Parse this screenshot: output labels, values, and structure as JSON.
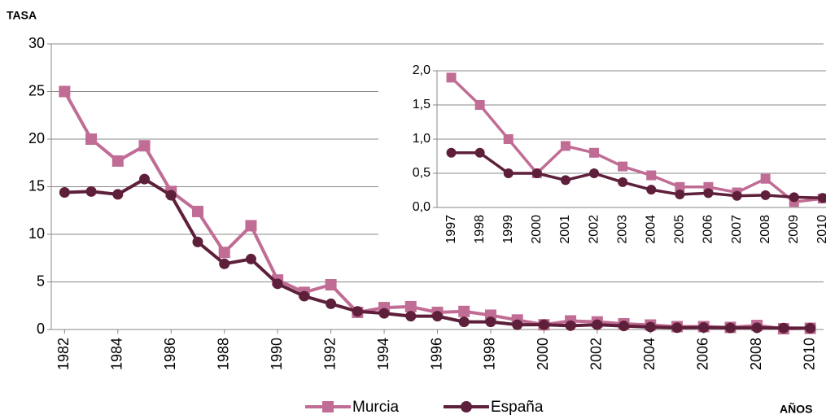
{
  "chart_data": [
    {
      "type": "line",
      "y_label": "TASA",
      "x_label": "AÑOS",
      "x": [
        1982,
        1983,
        1984,
        1985,
        1986,
        1987,
        1988,
        1989,
        1990,
        1991,
        1992,
        1993,
        1994,
        1995,
        1996,
        1997,
        1998,
        1999,
        2000,
        2001,
        2002,
        2003,
        2004,
        2005,
        2006,
        2007,
        2008,
        2009,
        2010
      ],
      "xlim": [
        1981.5,
        2010.5
      ],
      "xticks": [
        1982,
        1984,
        1986,
        1988,
        1990,
        1992,
        1994,
        1996,
        1998,
        2000,
        2002,
        2004,
        2006,
        2008,
        2010
      ],
      "ylim": [
        0,
        30
      ],
      "yticks": [
        0,
        5,
        10,
        15,
        20,
        25,
        30
      ],
      "grid": true,
      "series": [
        {
          "name": "Murcia",
          "color": "#c06c94",
          "marker": "square",
          "values": [
            25,
            20,
            17.7,
            19.3,
            14.5,
            12.4,
            8.1,
            10.9,
            5.2,
            3.9,
            4.7,
            1.8,
            2.3,
            2.4,
            1.8,
            1.9,
            1.5,
            1.0,
            0.5,
            0.9,
            0.8,
            0.6,
            0.47,
            0.3,
            0.3,
            0.22,
            0.42,
            0.08,
            0.13
          ]
        },
        {
          "name": "España",
          "color": "#5e1f3a",
          "marker": "circle",
          "values": [
            14.4,
            14.5,
            14.2,
            15.8,
            14.1,
            9.2,
            6.9,
            7.4,
            4.8,
            3.5,
            2.7,
            1.9,
            1.7,
            1.4,
            1.4,
            0.8,
            0.8,
            0.5,
            0.5,
            0.4,
            0.5,
            0.37,
            0.26,
            0.19,
            0.21,
            0.17,
            0.18,
            0.15,
            0.14
          ]
        }
      ]
    },
    {
      "type": "line",
      "categories": [
        1997,
        1998,
        1999,
        2000,
        2001,
        2002,
        2003,
        2004,
        2005,
        2006,
        2007,
        2008,
        2009,
        2010
      ],
      "ylim": [
        0,
        2
      ],
      "yticks": [
        {
          "value": 0,
          "label": "0,0"
        },
        {
          "value": 0.5,
          "label": "0,5"
        },
        {
          "value": 1,
          "label": "1,0"
        },
        {
          "value": 1.5,
          "label": "1,5"
        },
        {
          "value": 2,
          "label": "2,0"
        }
      ],
      "grid": true,
      "series": [
        {
          "name": "Murcia",
          "color": "#c06c94",
          "marker": "square",
          "values": [
            1.9,
            1.5,
            1.0,
            0.5,
            0.9,
            0.8,
            0.6,
            0.47,
            0.3,
            0.3,
            0.22,
            0.42,
            0.08,
            0.13
          ]
        },
        {
          "name": "España",
          "color": "#5e1f3a",
          "marker": "circle",
          "values": [
            0.8,
            0.8,
            0.5,
            0.5,
            0.4,
            0.5,
            0.37,
            0.26,
            0.19,
            0.21,
            0.17,
            0.18,
            0.15,
            0.14
          ]
        }
      ]
    }
  ]
}
